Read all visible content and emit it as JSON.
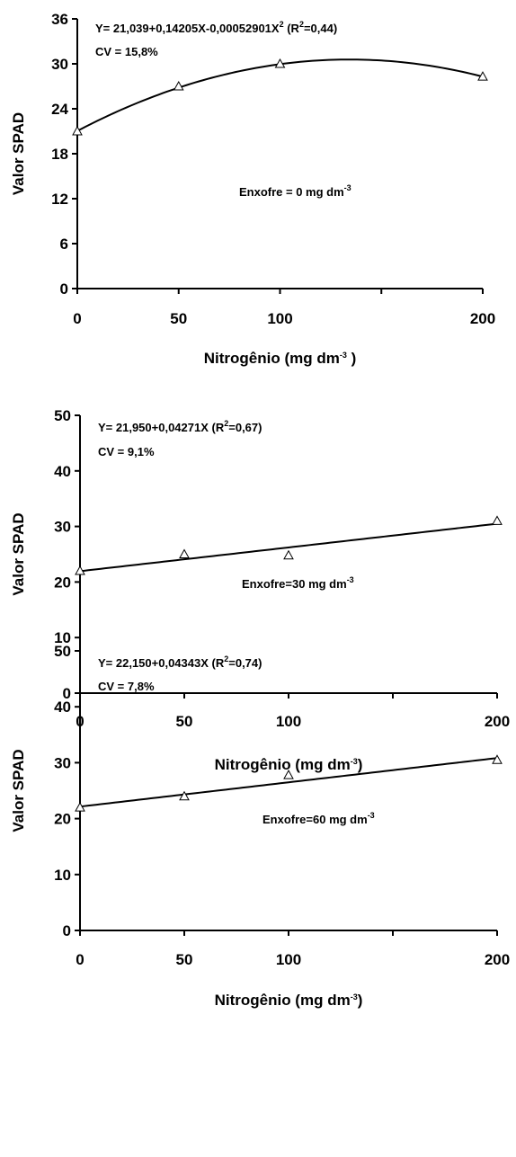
{
  "chart_data": [
    {
      "type": "scatter",
      "xlabel": "Nitrogênio (mg dm",
      "xlabel_sup": "-3",
      "xlabel_tail": " )",
      "ylabel": "Valor SPAD",
      "x": [
        0,
        50,
        100,
        200
      ],
      "x_ticks": [
        "0",
        "50",
        "100",
        "200"
      ],
      "y_ticks": [
        "0",
        "6",
        "12",
        "18",
        "24",
        "30",
        "36"
      ],
      "ylim": [
        0,
        36
      ],
      "grid": false,
      "series": [
        {
          "values": [
            21.0,
            27.0,
            30.0,
            28.3
          ]
        }
      ],
      "fit": {
        "kind": "quadratic",
        "coefficients": [
          21.039,
          0.14205,
          -0.00052901
        ]
      },
      "equation": "Y= 21,039+0,14205X-0,00052901X",
      "equation_sup": "2",
      "r2_pre": "(R",
      "r2_sup": "2",
      "r2_post": "=0,44)",
      "cv": "CV = 15,8%",
      "annotation": "Enxofre = 0 mg dm",
      "annotation_sup": "-3"
    },
    {
      "type": "scatter",
      "xlabel": "Nitrogênio (mg dm",
      "xlabel_sup": "-3",
      "xlabel_tail": ")",
      "ylabel": "Valor SPAD",
      "x": [
        0,
        50,
        100,
        200
      ],
      "x_ticks": [
        "0",
        "50",
        "100",
        "200"
      ],
      "y_ticks": [
        "0",
        "10",
        "20",
        "30",
        "40",
        "50"
      ],
      "ylim": [
        0,
        50
      ],
      "grid": false,
      "series": [
        {
          "values": [
            22.0,
            25.0,
            24.8,
            31.0
          ]
        }
      ],
      "fit": {
        "kind": "linear",
        "coefficients": [
          21.95,
          0.04271
        ]
      },
      "equation": "Y= 21,950+0,04271X",
      "equation_sup": "",
      "r2_pre": "(R",
      "r2_sup": "2",
      "r2_post": "=0,67)",
      "cv": "CV =  9,1%",
      "annotation": "Enxofre=30 mg dm",
      "annotation_sup": "-3"
    },
    {
      "type": "scatter",
      "xlabel": "Nitrogênio (mg dm",
      "xlabel_sup": "-3",
      "xlabel_tail": ")",
      "ylabel": "Valor SPAD",
      "x": [
        0,
        50,
        100,
        200
      ],
      "x_ticks": [
        "0",
        "50",
        "100",
        "200"
      ],
      "y_ticks": [
        "0",
        "10",
        "20",
        "30",
        "40",
        "50"
      ],
      "ylim": [
        0,
        50
      ],
      "grid": false,
      "series": [
        {
          "values": [
            22.0,
            24.0,
            27.8,
            30.5
          ]
        }
      ],
      "fit": {
        "kind": "linear",
        "coefficients": [
          22.15,
          0.04343
        ]
      },
      "equation": "Y= 22,150+0,04343X",
      "equation_sup": "",
      "r2_pre": "(R",
      "r2_sup": "2",
      "r2_post": "=0,74)",
      "cv": "CV =  7,8%",
      "annotation": "Enxofre=60 mg dm",
      "annotation_sup": "-3"
    }
  ]
}
